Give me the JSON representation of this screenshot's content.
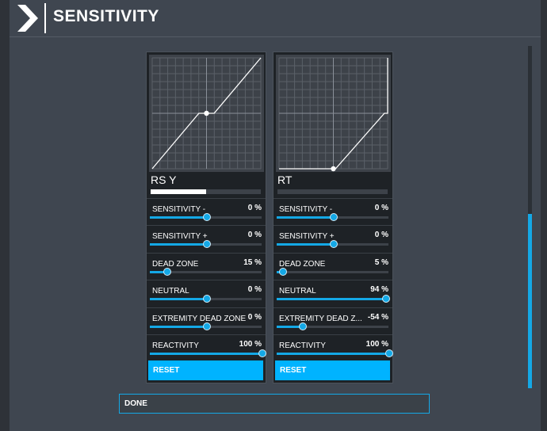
{
  "header": {
    "title": "SENSITIVITY"
  },
  "colors": {
    "accent": "#00b3ff",
    "panel": "#1e2226",
    "graph_bg": "#3d4249"
  },
  "panels": [
    {
      "axis_name": "RS Y",
      "axis_input_fraction": 0.5,
      "curve": "symmetric",
      "params": [
        {
          "label": "SENSITIVITY -",
          "value": "0 %",
          "level": 0.5
        },
        {
          "label": "SENSITIVITY +",
          "value": "0 %",
          "level": 0.5
        },
        {
          "label": "DEAD ZONE",
          "value": "15 %",
          "level": 0.15
        },
        {
          "label": "NEUTRAL",
          "value": "0 %",
          "level": 0.5
        },
        {
          "label": "EXTREMITY DEAD ZONE",
          "value": "0 %",
          "level": 0.5
        },
        {
          "label": "REACTIVITY",
          "value": "100 %",
          "level": 1.0
        }
      ],
      "reset_label": "RESET"
    },
    {
      "axis_name": "RT",
      "axis_input_fraction": 0.0,
      "curve": "trigger",
      "params": [
        {
          "label": "SENSITIVITY -",
          "value": "0 %",
          "level": 0.5
        },
        {
          "label": "SENSITIVITY +",
          "value": "0 %",
          "level": 0.5
        },
        {
          "label": "DEAD ZONE",
          "value": "5 %",
          "level": 0.05
        },
        {
          "label": "NEUTRAL",
          "value": "94 %",
          "level": 0.97
        },
        {
          "label": "EXTREMITY DEAD Z...",
          "value": "-54 %",
          "level": 0.23
        },
        {
          "label": "REACTIVITY",
          "value": "100 %",
          "level": 1.0
        }
      ],
      "reset_label": "RESET"
    }
  ],
  "done_label": "DONE"
}
